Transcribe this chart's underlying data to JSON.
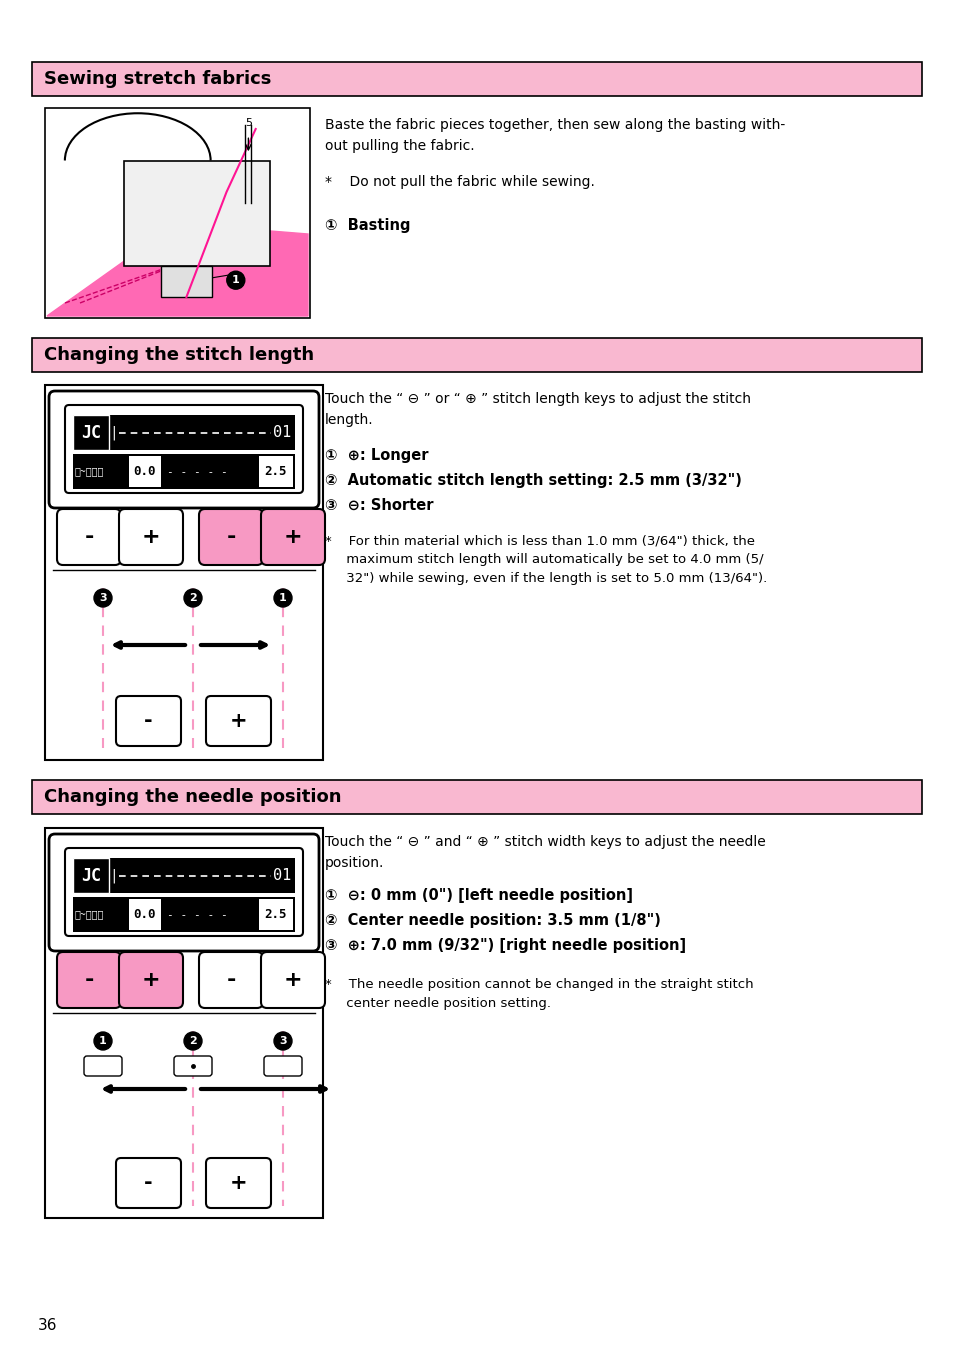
{
  "page_bg": "#ffffff",
  "pink_header_bg": "#f9b8d0",
  "black": "#000000",
  "white": "#ffffff",
  "pink_button": "#f799c3",
  "pink_light": "#ff69b4",
  "section1_title": "Sewing stretch fabrics",
  "section2_title": "Changing the stitch length",
  "section3_title": "Changing the needle position",
  "section1_text1": "Baste the fabric pieces together, then sew along the basting with-\nout pulling the fabric.",
  "section1_bullet": "*    Do not pull the fabric while sewing.",
  "section1_basting": "①  Basting",
  "section2_intro": "Touch the “ ⊖ ” or “ ⊕ ” stitch length keys to adjust the stitch\nlength.",
  "section2_item1": "①  ⊕: Longer",
  "section2_item2": "②  Automatic stitch length setting: 2.5 mm (3/32\")",
  "section2_item3": "③  ⊖: Shorter",
  "section2_note": "*    For thin material which is less than 1.0 mm (3/64\") thick, the\n     maximum stitch length will automatically be set to 4.0 mm (5/\n     32\") while sewing, even if the length is set to 5.0 mm (13/64\").",
  "section3_intro": "Touch the “ ⊖ ” and “ ⊕ ” stitch width keys to adjust the needle\nposition.",
  "section3_item1": "①  ⊖: 0 mm (0\") [left needle position]",
  "section3_item2": "②  Center needle position: 3.5 mm (1/8\")",
  "section3_item3": "③  ⊕: 7.0 mm (9/32\") [right needle position]",
  "section3_note": "*    The needle position cannot be changed in the straight stitch\n     center needle position setting.",
  "page_number": "36"
}
